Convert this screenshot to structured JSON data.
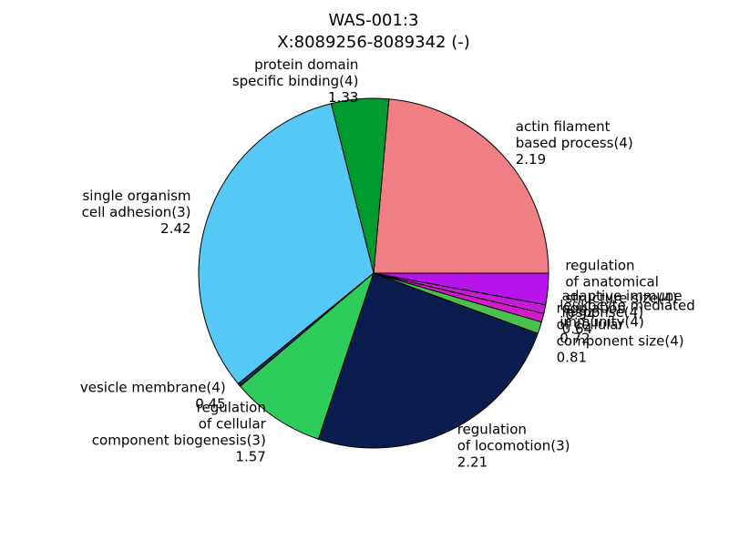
{
  "chart_data": {
    "type": "pie",
    "title": [
      "WAS-001:3",
      "X:8089256-8089342 (-)"
    ],
    "categories": [
      [
        "actin filament",
        "based process(4)",
        "2.19"
      ],
      [
        "protein domain",
        "specific binding(4)",
        "1.33"
      ],
      [
        "single organism",
        "cell adhesion(3)",
        "2.42"
      ],
      [
        "vesicle membrane(4)",
        "0.45"
      ],
      [
        "regulation",
        "of cellular",
        "component biogenesis(3)",
        "1.57"
      ],
      [
        "regulation",
        "of locomotion(3)",
        "2.21"
      ],
      [
        "regulation",
        "of cellular",
        "component size(4)",
        "0.81"
      ],
      [
        "leukocyte mediated",
        "immunity(4)",
        "0.72"
      ],
      [
        "adaptive immune",
        "response(4)",
        "0.64"
      ],
      [
        "regulation",
        "of anatomical",
        "structure size(4)",
        "0.94"
      ]
    ],
    "values": [
      23.6,
      5.3,
      32.0,
      0.3,
      8.7,
      24.5,
      1.1,
      0.8,
      0.8,
      2.9
    ],
    "colors": [
      "#ef7f84",
      "#009a2e",
      "#56c8f5",
      "#1c2c5a",
      "#2ecc5a",
      "#0b1c4e",
      "#4cc04f",
      "#d41bc8",
      "#c81bd8",
      "#b614ea"
    ]
  }
}
